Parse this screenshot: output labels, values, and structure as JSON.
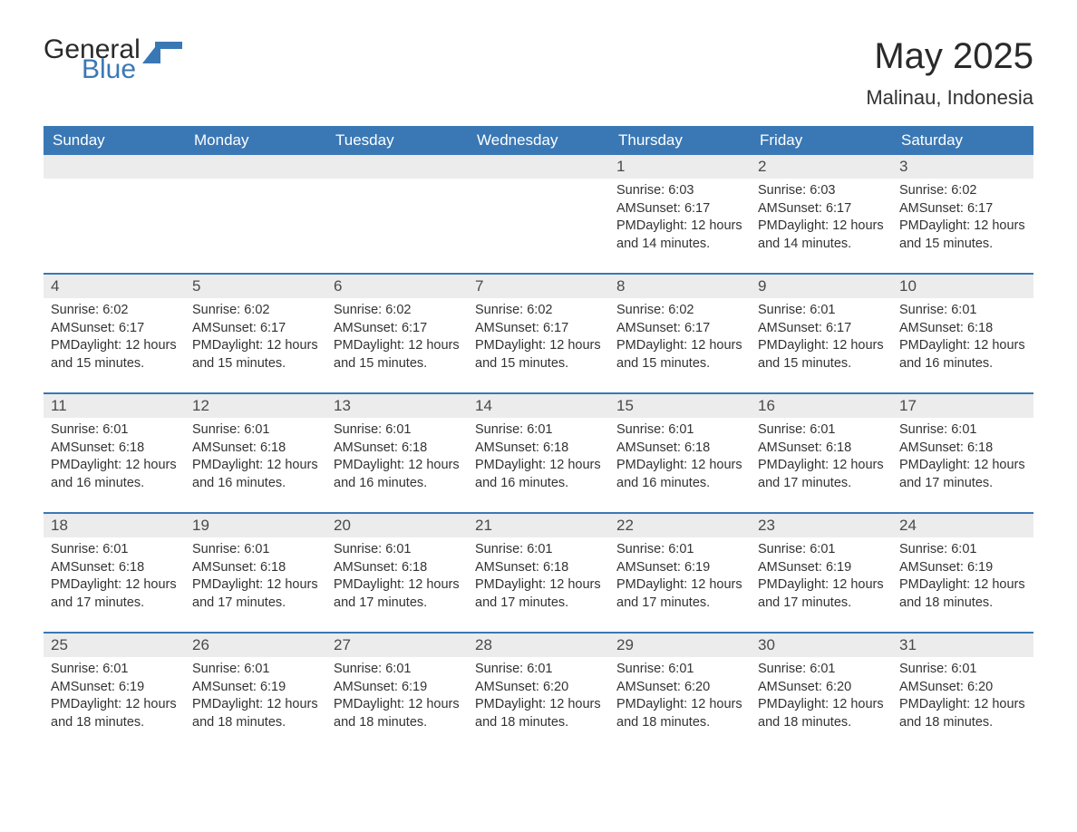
{
  "logo": {
    "text1": "General",
    "text2": "Blue"
  },
  "title": "May 2025",
  "subtitle": "Malinau, Indonesia",
  "colors": {
    "header_bg": "#3a78b5",
    "header_text": "#ffffff",
    "daynum_bg": "#ececec",
    "daynum_text": "#4a4a4a",
    "text": "#333333",
    "divider": "#3a78b5",
    "background": "#ffffff"
  },
  "fonts": {
    "title_size": 40,
    "subtitle_size": 22,
    "header_size": 17,
    "daynum_size": 17,
    "body_size": 14.5
  },
  "day_names": [
    "Sunday",
    "Monday",
    "Tuesday",
    "Wednesday",
    "Thursday",
    "Friday",
    "Saturday"
  ],
  "weeks": [
    [
      null,
      null,
      null,
      null,
      {
        "n": "1",
        "sunrise": "6:03 AM",
        "sunset": "6:17 PM",
        "daylight": "12 hours and 14 minutes."
      },
      {
        "n": "2",
        "sunrise": "6:03 AM",
        "sunset": "6:17 PM",
        "daylight": "12 hours and 14 minutes."
      },
      {
        "n": "3",
        "sunrise": "6:02 AM",
        "sunset": "6:17 PM",
        "daylight": "12 hours and 15 minutes."
      }
    ],
    [
      {
        "n": "4",
        "sunrise": "6:02 AM",
        "sunset": "6:17 PM",
        "daylight": "12 hours and 15 minutes."
      },
      {
        "n": "5",
        "sunrise": "6:02 AM",
        "sunset": "6:17 PM",
        "daylight": "12 hours and 15 minutes."
      },
      {
        "n": "6",
        "sunrise": "6:02 AM",
        "sunset": "6:17 PM",
        "daylight": "12 hours and 15 minutes."
      },
      {
        "n": "7",
        "sunrise": "6:02 AM",
        "sunset": "6:17 PM",
        "daylight": "12 hours and 15 minutes."
      },
      {
        "n": "8",
        "sunrise": "6:02 AM",
        "sunset": "6:17 PM",
        "daylight": "12 hours and 15 minutes."
      },
      {
        "n": "9",
        "sunrise": "6:01 AM",
        "sunset": "6:17 PM",
        "daylight": "12 hours and 15 minutes."
      },
      {
        "n": "10",
        "sunrise": "6:01 AM",
        "sunset": "6:18 PM",
        "daylight": "12 hours and 16 minutes."
      }
    ],
    [
      {
        "n": "11",
        "sunrise": "6:01 AM",
        "sunset": "6:18 PM",
        "daylight": "12 hours and 16 minutes."
      },
      {
        "n": "12",
        "sunrise": "6:01 AM",
        "sunset": "6:18 PM",
        "daylight": "12 hours and 16 minutes."
      },
      {
        "n": "13",
        "sunrise": "6:01 AM",
        "sunset": "6:18 PM",
        "daylight": "12 hours and 16 minutes."
      },
      {
        "n": "14",
        "sunrise": "6:01 AM",
        "sunset": "6:18 PM",
        "daylight": "12 hours and 16 minutes."
      },
      {
        "n": "15",
        "sunrise": "6:01 AM",
        "sunset": "6:18 PM",
        "daylight": "12 hours and 16 minutes."
      },
      {
        "n": "16",
        "sunrise": "6:01 AM",
        "sunset": "6:18 PM",
        "daylight": "12 hours and 17 minutes."
      },
      {
        "n": "17",
        "sunrise": "6:01 AM",
        "sunset": "6:18 PM",
        "daylight": "12 hours and 17 minutes."
      }
    ],
    [
      {
        "n": "18",
        "sunrise": "6:01 AM",
        "sunset": "6:18 PM",
        "daylight": "12 hours and 17 minutes."
      },
      {
        "n": "19",
        "sunrise": "6:01 AM",
        "sunset": "6:18 PM",
        "daylight": "12 hours and 17 minutes."
      },
      {
        "n": "20",
        "sunrise": "6:01 AM",
        "sunset": "6:18 PM",
        "daylight": "12 hours and 17 minutes."
      },
      {
        "n": "21",
        "sunrise": "6:01 AM",
        "sunset": "6:18 PM",
        "daylight": "12 hours and 17 minutes."
      },
      {
        "n": "22",
        "sunrise": "6:01 AM",
        "sunset": "6:19 PM",
        "daylight": "12 hours and 17 minutes."
      },
      {
        "n": "23",
        "sunrise": "6:01 AM",
        "sunset": "6:19 PM",
        "daylight": "12 hours and 17 minutes."
      },
      {
        "n": "24",
        "sunrise": "6:01 AM",
        "sunset": "6:19 PM",
        "daylight": "12 hours and 18 minutes."
      }
    ],
    [
      {
        "n": "25",
        "sunrise": "6:01 AM",
        "sunset": "6:19 PM",
        "daylight": "12 hours and 18 minutes."
      },
      {
        "n": "26",
        "sunrise": "6:01 AM",
        "sunset": "6:19 PM",
        "daylight": "12 hours and 18 minutes."
      },
      {
        "n": "27",
        "sunrise": "6:01 AM",
        "sunset": "6:19 PM",
        "daylight": "12 hours and 18 minutes."
      },
      {
        "n": "28",
        "sunrise": "6:01 AM",
        "sunset": "6:20 PM",
        "daylight": "12 hours and 18 minutes."
      },
      {
        "n": "29",
        "sunrise": "6:01 AM",
        "sunset": "6:20 PM",
        "daylight": "12 hours and 18 minutes."
      },
      {
        "n": "30",
        "sunrise": "6:01 AM",
        "sunset": "6:20 PM",
        "daylight": "12 hours and 18 minutes."
      },
      {
        "n": "31",
        "sunrise": "6:01 AM",
        "sunset": "6:20 PM",
        "daylight": "12 hours and 18 minutes."
      }
    ]
  ],
  "labels": {
    "sunrise": "Sunrise:",
    "sunset": "Sunset:",
    "daylight": "Daylight:"
  }
}
